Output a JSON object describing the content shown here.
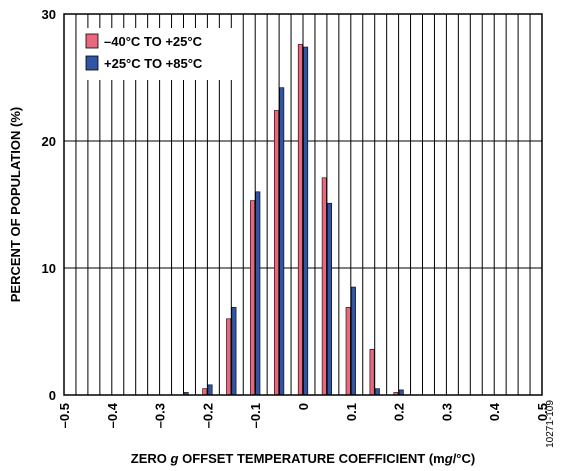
{
  "chart_data": {
    "type": "bar",
    "xlabel_parts": [
      "ZERO ",
      "g",
      " OFFSET TEMPERATURE COEFFICIENT (m",
      "g",
      "/°C)"
    ],
    "ylabel": "PERCENT OF POPULATION (%)",
    "figure_id": "10271-109",
    "xlim": [
      -0.5,
      0.5
    ],
    "ylim": [
      0,
      30
    ],
    "x_ticks": [
      -0.5,
      -0.4,
      -0.3,
      -0.2,
      -0.1,
      0,
      0.1,
      0.2,
      0.3,
      0.4,
      0.5
    ],
    "x_tick_labels": [
      "–0.5",
      "–0.4",
      "–0.3",
      "–0.2",
      "–0.1",
      "0",
      "0.1",
      "0.2",
      "0.3",
      "0.4",
      "0.5"
    ],
    "y_ticks": [
      0,
      10,
      20,
      30
    ],
    "y_tick_labels": [
      "0",
      "10",
      "20",
      "30"
    ],
    "bin_width": 0.05,
    "categories": [
      -0.25,
      -0.2,
      -0.15,
      -0.1,
      -0.05,
      0,
      0.05,
      0.1,
      0.15,
      0.2
    ],
    "series": [
      {
        "name": "–40°C TO +25°C",
        "color": "#e8687f",
        "values": [
          0.0,
          0.5,
          6.0,
          15.3,
          22.4,
          27.6,
          17.1,
          6.9,
          3.6,
          0.2
        ]
      },
      {
        "name": "+25°C TO +85°C",
        "color": "#2f55a4",
        "values": [
          0.2,
          0.8,
          6.9,
          16.0,
          24.2,
          27.4,
          15.1,
          8.5,
          0.5,
          0.4
        ]
      }
    ],
    "grid": true,
    "legend_position": "top-left"
  }
}
